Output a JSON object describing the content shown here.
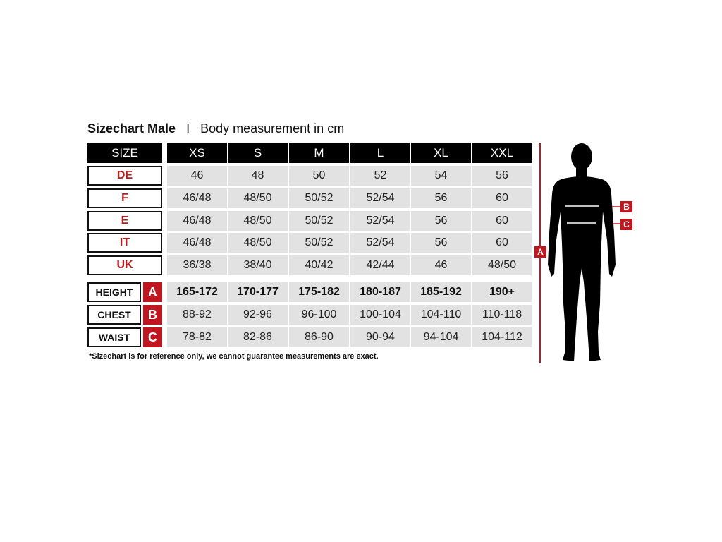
{
  "title": {
    "bold": "Sizechart Male",
    "separator": "I",
    "subtitle": "Body measurement in cm"
  },
  "header": {
    "label": "SIZE",
    "sizes": [
      "XS",
      "S",
      "M",
      "L",
      "XL",
      "XXL"
    ]
  },
  "size_rows": [
    {
      "label": "DE",
      "values": [
        "46",
        "48",
        "50",
        "52",
        "54",
        "56"
      ]
    },
    {
      "label": "F",
      "values": [
        "46/48",
        "48/50",
        "50/52",
        "52/54",
        "56",
        "60"
      ]
    },
    {
      "label": "E",
      "values": [
        "46/48",
        "48/50",
        "50/52",
        "52/54",
        "56",
        "60"
      ]
    },
    {
      "label": "IT",
      "values": [
        "46/48",
        "48/50",
        "50/52",
        "52/54",
        "56",
        "60"
      ]
    },
    {
      "label": "UK",
      "values": [
        "36/38",
        "38/40",
        "40/42",
        "42/44",
        "46",
        "48/50"
      ]
    }
  ],
  "measure_rows": [
    {
      "label": "HEIGHT",
      "letter": "A",
      "values": [
        "165-172",
        "170-177",
        "175-182",
        "180-187",
        "185-192",
        "190+"
      ]
    },
    {
      "label": "CHEST",
      "letter": "B",
      "values": [
        "88-92",
        "92-96",
        "96-100",
        "100-104",
        "104-110",
        "110-118"
      ]
    },
    {
      "label": "WAIST",
      "letter": "C",
      "values": [
        "78-82",
        "82-86",
        "86-90",
        "90-94",
        "94-104",
        "104-112"
      ]
    }
  ],
  "footnote": "*Sizechart is for reference only, we cannot guarantee measurements are exact.",
  "figure": {
    "height_marker": "A",
    "chest_marker": "B",
    "waist_marker": "C"
  },
  "colors": {
    "accent_red": "#c0161f",
    "header_black": "#000000",
    "cell_gray": "#e2e2e3"
  }
}
